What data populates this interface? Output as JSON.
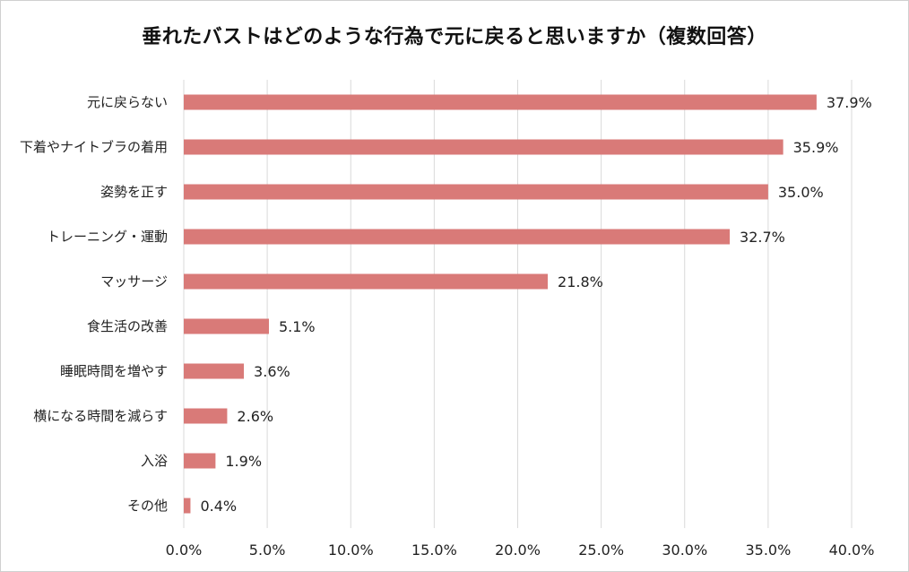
{
  "title": "垂れたバストはどのような行為で元に戻ると思いますか（複数回答）",
  "chart_data": {
    "type": "bar",
    "orientation": "horizontal",
    "title": "垂れたバストはどのような行為で元に戻ると思いますか（複数回答）",
    "xlabel": "",
    "ylabel": "",
    "xlim": [
      0,
      40
    ],
    "grid": true,
    "bar_color": "#d97a78",
    "categories": [
      "元に戻らない",
      "下着やナイトブラの着用",
      "姿勢を正す",
      "トレーニング・運動",
      "マッサージ",
      "食生活の改善",
      "睡眠時間を増やす",
      "横になる時間を減らす",
      "入浴",
      "その他"
    ],
    "values": [
      37.9,
      35.9,
      35.0,
      32.7,
      21.8,
      5.1,
      3.6,
      2.6,
      1.9,
      0.4
    ],
    "value_labels": [
      "37.9%",
      "35.9%",
      "35.0%",
      "32.7%",
      "21.8%",
      "5.1%",
      "3.6%",
      "2.6%",
      "1.9%",
      "0.4%"
    ],
    "ticks": [
      0,
      5,
      10,
      15,
      20,
      25,
      30,
      35,
      40
    ],
    "tick_labels": [
      "0.0%",
      "5.0%",
      "10.0%",
      "15.0%",
      "20.0%",
      "25.0%",
      "30.0%",
      "35.0%",
      "40.0%"
    ]
  }
}
